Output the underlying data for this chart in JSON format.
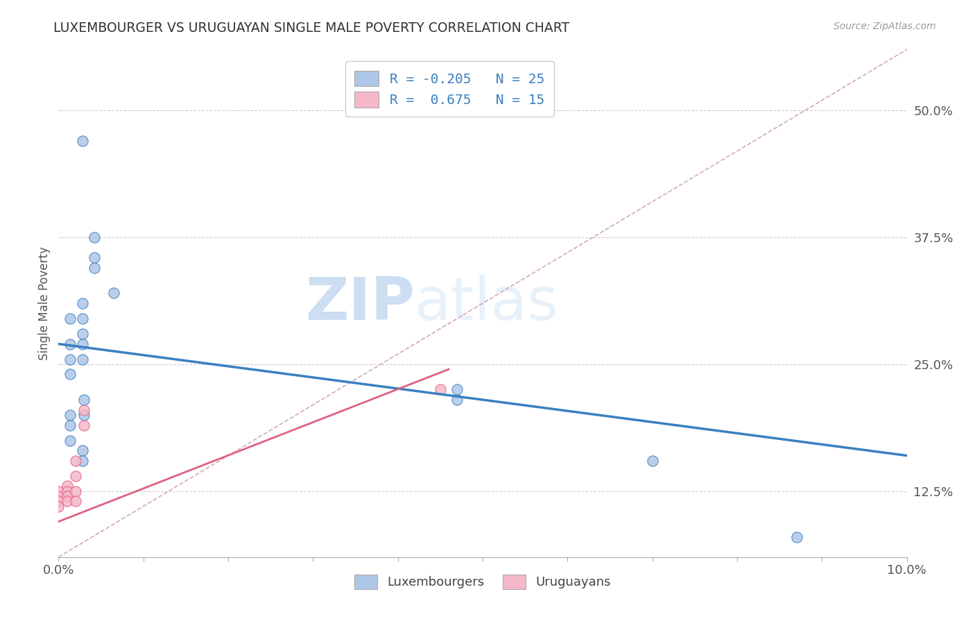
{
  "title": "LUXEMBOURGER VS URUGUAYAN SINGLE MALE POVERTY CORRELATION CHART",
  "source": "Source: ZipAtlas.com",
  "ylabel": "Single Male Poverty",
  "xlim": [
    0.0,
    0.1
  ],
  "ylim": [
    0.06,
    0.56
  ],
  "yticks": [
    0.125,
    0.25,
    0.375,
    0.5
  ],
  "ytick_labels": [
    "12.5%",
    "25.0%",
    "37.5%",
    "50.0%"
  ],
  "xticks": [
    0.0,
    0.01,
    0.02,
    0.03,
    0.04,
    0.05,
    0.06,
    0.07,
    0.08,
    0.09,
    0.1
  ],
  "xtick_labels": [
    "0.0%",
    "",
    "",
    "",
    "",
    "",
    "",
    "",
    "",
    "",
    "10.0%"
  ],
  "lux_R": -0.205,
  "lux_N": 25,
  "uru_R": 0.675,
  "uru_N": 15,
  "watermark_zip": "ZIP",
  "watermark_atlas": "atlas",
  "lux_color": "#aec6e8",
  "lux_line_color": "#3a7fc1",
  "uru_color": "#f5b8c8",
  "uru_line_color": "#e06080",
  "diag_color": "#d0a0a8",
  "lux_line_x": [
    0.0,
    0.1
  ],
  "lux_line_y": [
    0.27,
    0.16
  ],
  "uru_line_x": [
    0.0,
    0.046
  ],
  "uru_line_y": [
    0.095,
    0.245
  ],
  "lux_points": [
    [
      0.0028,
      0.47
    ],
    [
      0.0065,
      0.32
    ],
    [
      0.0042,
      0.375
    ],
    [
      0.0042,
      0.355
    ],
    [
      0.0042,
      0.345
    ],
    [
      0.0028,
      0.31
    ],
    [
      0.0028,
      0.295
    ],
    [
      0.0028,
      0.28
    ],
    [
      0.0014,
      0.295
    ],
    [
      0.0014,
      0.27
    ],
    [
      0.0014,
      0.255
    ],
    [
      0.0014,
      0.24
    ],
    [
      0.0028,
      0.27
    ],
    [
      0.0028,
      0.255
    ],
    [
      0.003,
      0.215
    ],
    [
      0.003,
      0.2
    ],
    [
      0.0014,
      0.2
    ],
    [
      0.0014,
      0.19
    ],
    [
      0.0014,
      0.175
    ],
    [
      0.0028,
      0.165
    ],
    [
      0.0028,
      0.155
    ],
    [
      0.047,
      0.225
    ],
    [
      0.047,
      0.215
    ],
    [
      0.07,
      0.155
    ],
    [
      0.087,
      0.08
    ]
  ],
  "uru_points": [
    [
      0.0,
      0.125
    ],
    [
      0.0,
      0.12
    ],
    [
      0.0,
      0.115
    ],
    [
      0.0,
      0.11
    ],
    [
      0.001,
      0.13
    ],
    [
      0.001,
      0.125
    ],
    [
      0.001,
      0.12
    ],
    [
      0.001,
      0.115
    ],
    [
      0.002,
      0.155
    ],
    [
      0.002,
      0.14
    ],
    [
      0.002,
      0.125
    ],
    [
      0.002,
      0.115
    ],
    [
      0.003,
      0.205
    ],
    [
      0.003,
      0.19
    ],
    [
      0.045,
      0.225
    ]
  ]
}
